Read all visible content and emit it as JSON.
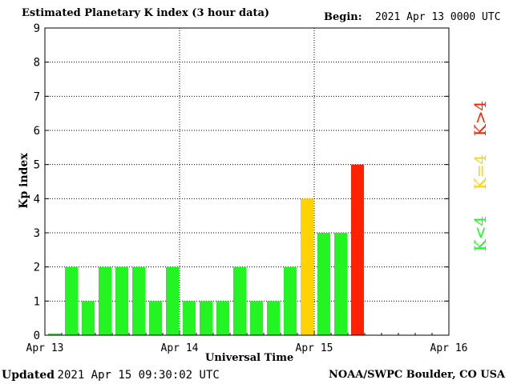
{
  "header": {
    "title": "Estimated Planetary K index (3 hour data)",
    "begin_label": "Begin:",
    "begin_value": "2021 Apr 13 0000 UTC"
  },
  "footer": {
    "updated_label": "Updated",
    "updated_value": "2021 Apr 15 09:30:02 UTC",
    "source": "NOAA/SWPC Boulder, CO USA"
  },
  "legend": {
    "below": "K<4",
    "equal": "K=4",
    "above": "K>4"
  },
  "colors": {
    "below": "#22f522",
    "equal": "#ffd200",
    "above": "#ff2200"
  },
  "chart_data": {
    "type": "bar",
    "title": "Estimated Planetary K index (3 hour data)",
    "xlabel": "Universal Time",
    "ylabel": "Kp index",
    "ylim": [
      0,
      9
    ],
    "yticks": [
      "0",
      "1",
      "2",
      "3",
      "4",
      "5",
      "6",
      "7",
      "8",
      "9"
    ],
    "xticks": [
      "Apr 13",
      "Apr 14",
      "Apr 15",
      "Apr 16"
    ],
    "interval_hours": 3,
    "grid": true,
    "values": [
      0.05,
      2,
      1,
      2,
      2,
      2,
      1,
      2,
      1,
      1,
      1,
      2,
      1,
      1,
      2,
      4,
      3,
      3,
      5
    ]
  }
}
